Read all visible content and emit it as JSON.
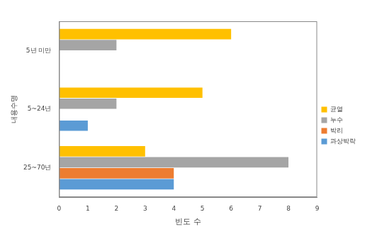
{
  "chart_data": {
    "type": "bar",
    "orientation": "horizontal",
    "xlabel": "빈도 수",
    "ylabel": "내용수명",
    "categories": [
      "5년 미만",
      "5~24년",
      "25~70년"
    ],
    "series": [
      {
        "name": "균열",
        "color": "#ffc000",
        "values": [
          6,
          5,
          3
        ]
      },
      {
        "name": "누수",
        "color": "#a5a5a5",
        "values": [
          2,
          2,
          8
        ]
      },
      {
        "name": "박리",
        "color": "#ed7d31",
        "values": [
          0,
          0,
          4
        ]
      },
      {
        "name": "과상박락",
        "color": "#5b9bd5",
        "values": [
          0,
          1,
          4
        ]
      }
    ],
    "xlim": [
      0,
      9
    ],
    "xticks": [
      0,
      1,
      2,
      3,
      4,
      5,
      6,
      7,
      8,
      9
    ],
    "grid": false,
    "legend": "right"
  }
}
